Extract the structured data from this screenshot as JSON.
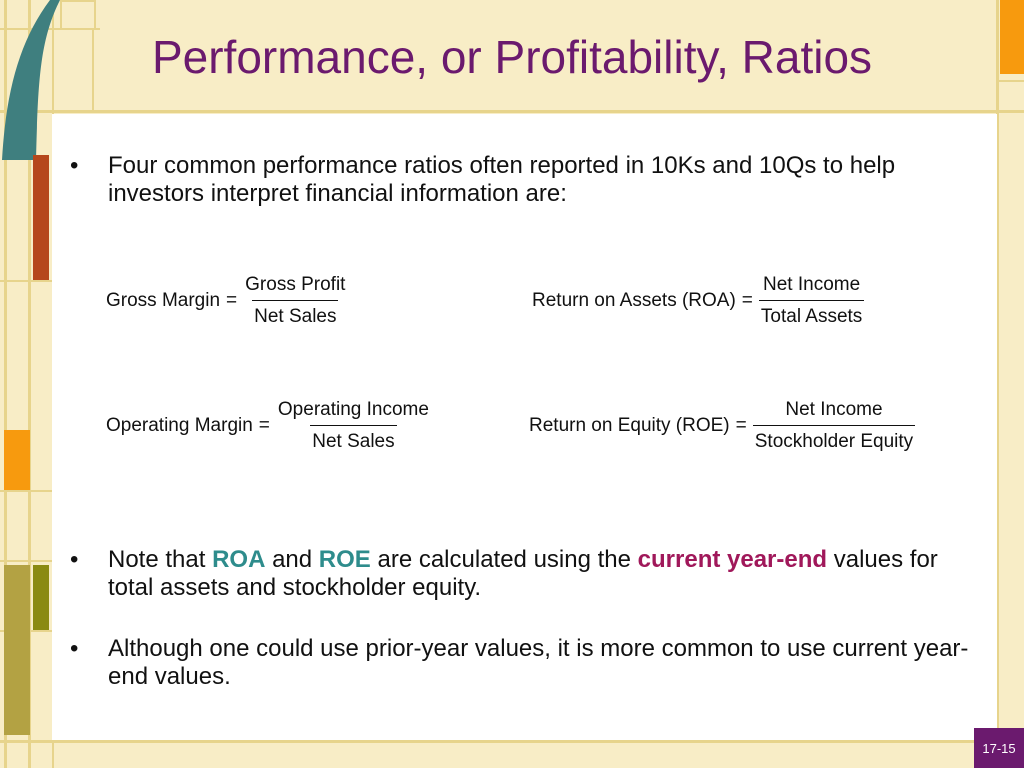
{
  "slide": {
    "title": "Performance, or Profitability, Ratios",
    "page_number": "17-15"
  },
  "bullets": [
    {
      "marker": "•",
      "text": "Four common performance ratios often reported in 10Ks and 10Qs to help investors interpret financial information are:"
    },
    {
      "marker": "•",
      "parts": [
        "Note that ",
        "ROA",
        " and ",
        "ROE",
        " are calculated using the ",
        "current year-end",
        " values for total assets and stockholder equity."
      ]
    },
    {
      "marker": "•",
      "text": "Although one could use prior-year values, it is more common to use current year-end values."
    }
  ],
  "formulas": [
    {
      "lhs": "Gross Margin",
      "eq": "=",
      "numerator": "Gross Profit",
      "denominator": "Net Sales"
    },
    {
      "lhs": "Return on Assets (ROA)",
      "eq": "=",
      "numerator": "Net Income",
      "denominator": "Total Assets"
    },
    {
      "lhs": "Operating Margin",
      "eq": "=",
      "numerator": "Operating Income",
      "denominator": "Net Sales"
    },
    {
      "lhs": "Return on Equity (ROE)",
      "eq": "=",
      "numerator": "Net Income",
      "denominator": "Stockholder Equity"
    }
  ],
  "colors": {
    "title": "#6b1a6e",
    "keyword_teal": "#2e8c8c",
    "keyword_maroon": "#a0185a",
    "background": "#f8edc6"
  }
}
